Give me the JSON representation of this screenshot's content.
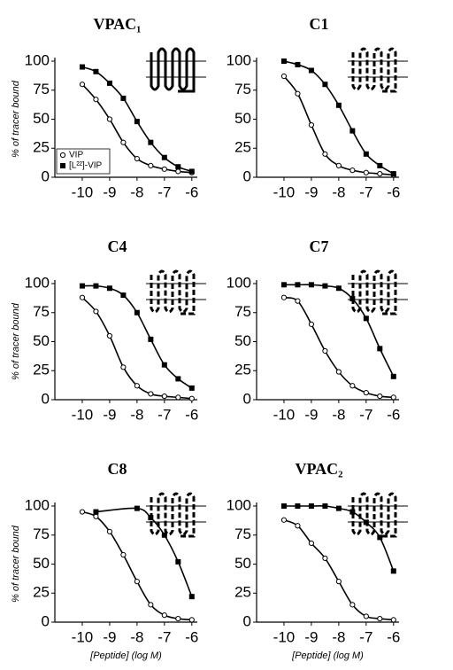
{
  "chart_data": [
    {
      "type": "line",
      "title": "VPAC₁",
      "ylabel": "% of tracer bound",
      "legend": "lower left",
      "x": [
        -10,
        -9.5,
        -9,
        -8.5,
        -8,
        -7.5,
        -7,
        -6.5,
        -6
      ],
      "xlim": [
        -11,
        -5.8
      ],
      "xticks": [
        -10,
        -9,
        -8,
        -7,
        -6
      ],
      "ylim": [
        0,
        100
      ],
      "yticks": [
        0,
        25,
        50,
        75,
        100
      ],
      "series": [
        {
          "name": "VIP",
          "marker": "open",
          "color": "#000",
          "values": [
            80,
            67,
            50,
            30,
            16,
            10,
            7,
            5,
            4
          ]
        },
        {
          "name": "[L²²]-VIP",
          "marker": "filled",
          "color": "#000",
          "values": [
            95,
            91,
            81,
            68,
            48,
            30,
            17,
            9,
            5
          ]
        }
      ]
    },
    {
      "type": "line",
      "title": "C1",
      "x": [
        -10,
        -9.5,
        -9,
        -8.5,
        -8,
        -7.5,
        -7,
        -6.5,
        -6
      ],
      "xlim": [
        -11,
        -5.8
      ],
      "xticks": [
        -10,
        -9,
        -8,
        -7,
        -6
      ],
      "ylim": [
        0,
        100
      ],
      "yticks": [
        0,
        25,
        50,
        75,
        100
      ],
      "series": [
        {
          "marker": "open",
          "color": "#000",
          "values": [
            87,
            72,
            45,
            20,
            10,
            6,
            4,
            3,
            2
          ]
        },
        {
          "marker": "filled",
          "color": "#000",
          "values": [
            100,
            97,
            92,
            80,
            62,
            40,
            20,
            10,
            3
          ]
        }
      ]
    },
    {
      "type": "line",
      "title": "C4",
      "ylabel": "% of tracer bound",
      "x": [
        -10,
        -9.5,
        -9,
        -8.5,
        -8,
        -7.5,
        -7,
        -6.5,
        -6
      ],
      "xlim": [
        -11,
        -5.8
      ],
      "xticks": [
        -10,
        -9,
        -8,
        -7,
        -6
      ],
      "ylim": [
        0,
        100
      ],
      "yticks": [
        0,
        25,
        50,
        75,
        100
      ],
      "series": [
        {
          "marker": "open",
          "color": "#000",
          "values": [
            88,
            76,
            55,
            28,
            12,
            5,
            3,
            2,
            1
          ]
        },
        {
          "marker": "filled",
          "color": "#000",
          "values": [
            98,
            98,
            96,
            90,
            75,
            52,
            30,
            18,
            10
          ]
        }
      ]
    },
    {
      "type": "line",
      "title": "C7",
      "x": [
        -10,
        -9.5,
        -9,
        -8.5,
        -8,
        -7.5,
        -7,
        -6.5,
        -6
      ],
      "xlim": [
        -11,
        -5.8
      ],
      "xticks": [
        -10,
        -9,
        -8,
        -7,
        -6
      ],
      "ylim": [
        0,
        100
      ],
      "yticks": [
        0,
        25,
        50,
        75,
        100
      ],
      "series": [
        {
          "marker": "open",
          "color": "#000",
          "values": [
            88,
            85,
            65,
            42,
            24,
            12,
            6,
            3,
            2
          ]
        },
        {
          "marker": "filled",
          "color": "#000",
          "values": [
            99,
            99,
            99,
            98,
            96,
            87,
            70,
            44,
            20
          ]
        }
      ]
    },
    {
      "type": "line",
      "title": "C8",
      "ylabel": "% of tracer bound",
      "xlabel": "[Peptide] (log M)",
      "x": [
        -10,
        -9.5,
        -9,
        -8.5,
        -8,
        -7.5,
        -7,
        -6.5,
        -6
      ],
      "xlim": [
        -11,
        -5.8
      ],
      "xticks": [
        -10,
        -9,
        -8,
        -7,
        -6
      ],
      "ylim": [
        0,
        100
      ],
      "yticks": [
        0,
        25,
        50,
        75,
        100
      ],
      "series": [
        {
          "marker": "open",
          "color": "#000",
          "values": [
            95,
            91,
            78,
            58,
            35,
            15,
            6,
            3,
            2
          ]
        },
        {
          "marker": "filled",
          "color": "#000",
          "x": [
            -9.5,
            -8,
            -7.5,
            -7,
            -6.5,
            -6
          ],
          "values": [
            95,
            98,
            90,
            75,
            52,
            22
          ]
        }
      ]
    },
    {
      "type": "line",
      "title": "VPAC₂",
      "xlabel": "[Peptide] (log M)",
      "x": [
        -10,
        -9.5,
        -9,
        -8.5,
        -8,
        -7.5,
        -7,
        -6.5,
        -6
      ],
      "xlim": [
        -11,
        -5.8
      ],
      "xticks": [
        -10,
        -9,
        -8,
        -7,
        -6
      ],
      "ylim": [
        0,
        100
      ],
      "yticks": [
        0,
        25,
        50,
        75,
        100
      ],
      "series": [
        {
          "marker": "open",
          "color": "#000",
          "values": [
            88,
            83,
            68,
            55,
            35,
            15,
            5,
            3,
            2
          ]
        },
        {
          "marker": "filled",
          "color": "#000",
          "values": [
            100,
            100,
            100,
            100,
            98,
            95,
            86,
            73,
            44
          ]
        }
      ]
    }
  ]
}
